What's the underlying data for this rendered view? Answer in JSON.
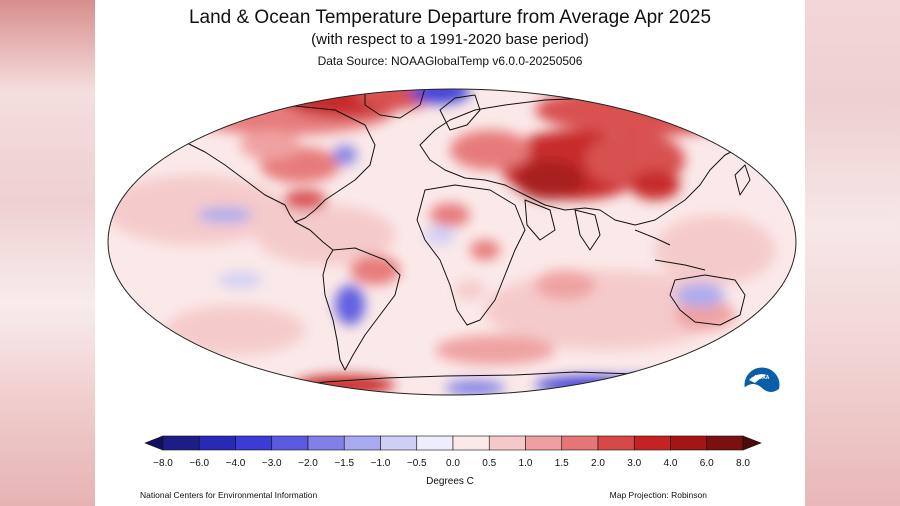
{
  "header": {
    "title": "Land & Ocean Temperature Departure from Average Apr 2025",
    "subtitle": "(with respect to a 1991-2020 base period)",
    "source": "Data Source: NOAAGlobalTemp v6.0.0-20250506"
  },
  "legend": {
    "ticks": [
      "−8.0",
      "−6.0",
      "−4.0",
      "−3.0",
      "−2.0",
      "−1.5",
      "−1.0",
      "−0.5",
      "0.0",
      "0.5",
      "1.0",
      "1.5",
      "2.0",
      "3.0",
      "4.0",
      "6.0",
      "8.0"
    ],
    "colors": [
      "#1d1d86",
      "#2929b8",
      "#3b3bd6",
      "#5a5ae0",
      "#8080e6",
      "#a9a9ef",
      "#cfcff6",
      "#ededfb",
      "#fbe9e9",
      "#f5c9c9",
      "#ef9f9f",
      "#e67676",
      "#d74848",
      "#c52323",
      "#a51515",
      "#7a1010"
    ],
    "units": "Degrees C"
  },
  "footer": {
    "credit_left": "National Centers for Environmental Information",
    "credit_right": "Map Projection: Robinson"
  },
  "logo": {
    "text": "NOAA"
  }
}
